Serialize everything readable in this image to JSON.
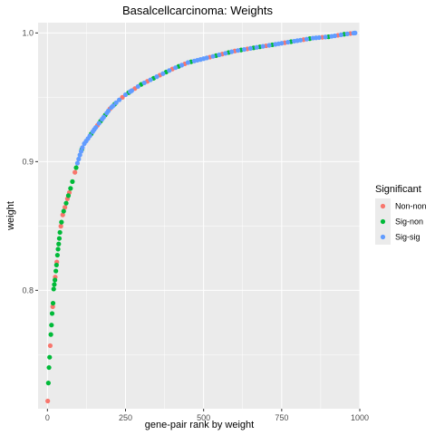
{
  "chart_data": {
    "type": "scatter",
    "title": "Basalcellcarcinoma: Weights",
    "xlabel": "gene-pair rank by weight",
    "ylabel": "weight",
    "xlim": [
      -30,
      1000
    ],
    "ylim": [
      0.708,
      1.008
    ],
    "x_ticks": [
      0,
      250,
      500,
      750,
      1000
    ],
    "x_tick_labels": [
      "0",
      "250",
      "500",
      "750",
      "1000"
    ],
    "y_ticks": [
      0.8,
      0.9,
      1.0
    ],
    "y_tick_labels": [
      "0.8",
      "0.9",
      "1.0"
    ],
    "grid": true,
    "background": "#EBEBEB",
    "legend": {
      "title": "Significant",
      "position": "right",
      "entries": [
        {
          "label": "Non-non",
          "color": "#F8766D"
        },
        {
          "label": "Sig-non",
          "color": "#00BA38"
        },
        {
          "label": "Sig-sig",
          "color": "#619CFF"
        }
      ]
    },
    "curve_points": [
      [
        1,
        0.714
      ],
      [
        3,
        0.728
      ],
      [
        5,
        0.74
      ],
      [
        8,
        0.752
      ],
      [
        10,
        0.762
      ],
      [
        13,
        0.773
      ],
      [
        15,
        0.782
      ],
      [
        18,
        0.79
      ],
      [
        20,
        0.801
      ],
      [
        24,
        0.808
      ],
      [
        27,
        0.815
      ],
      [
        30,
        0.822
      ],
      [
        33,
        0.83
      ],
      [
        37,
        0.838
      ],
      [
        40,
        0.845
      ],
      [
        45,
        0.853
      ],
      [
        50,
        0.86
      ],
      [
        58,
        0.866
      ],
      [
        65,
        0.872
      ],
      [
        75,
        0.88
      ],
      [
        85,
        0.889
      ],
      [
        95,
        0.898
      ],
      [
        105,
        0.906
      ],
      [
        115,
        0.913
      ],
      [
        130,
        0.918
      ],
      [
        150,
        0.925
      ],
      [
        175,
        0.933
      ],
      [
        200,
        0.941
      ],
      [
        225,
        0.947
      ],
      [
        250,
        0.952
      ],
      [
        300,
        0.96
      ],
      [
        350,
        0.966
      ],
      [
        400,
        0.972
      ],
      [
        450,
        0.977
      ],
      [
        500,
        0.98
      ],
      [
        550,
        0.983
      ],
      [
        600,
        0.986
      ],
      [
        650,
        0.988
      ],
      [
        700,
        0.99
      ],
      [
        750,
        0.992
      ],
      [
        800,
        0.994
      ],
      [
        850,
        0.996
      ],
      [
        900,
        0.997
      ],
      [
        950,
        0.999
      ],
      [
        985,
        1.0
      ]
    ],
    "series": [
      {
        "name": "Non-non",
        "color": "#F8766D",
        "ranks": [
          1,
          9,
          17,
          25,
          30,
          43,
          49,
          56,
          64,
          70,
          88,
          160,
          200,
          240,
          280,
          320,
          360,
          400,
          440,
          520,
          560,
          600,
          640,
          700,
          760,
          820,
          880,
          930,
          970
        ]
      },
      {
        "name": "Sig-non",
        "color": "#00BA38",
        "ranks": [
          3,
          5,
          7,
          11,
          13,
          15,
          18,
          20,
          22,
          24,
          27,
          29,
          32,
          34,
          36,
          38,
          40,
          45,
          52,
          60,
          67,
          74,
          80,
          92,
          110,
          140,
          170,
          185,
          215,
          260,
          300,
          340,
          380,
          420,
          460,
          540,
          580,
          620,
          660,
          680,
          720,
          780,
          840,
          900,
          950
        ]
      },
      {
        "name": "Sig-sig",
        "color": "#619CFF",
        "ranks": [
          96,
          100,
          104,
          108,
          112,
          118,
          124,
          130,
          136,
          145,
          150,
          155,
          165,
          175,
          180,
          190,
          195,
          205,
          210,
          220,
          230,
          250,
          265,
          270,
          290,
          310,
          330,
          350,
          370,
          390,
          410,
          430,
          450,
          470,
          480,
          490,
          500,
          510,
          530,
          550,
          570,
          590,
          610,
          630,
          650,
          670,
          690,
          710,
          730,
          740,
          750,
          770,
          790,
          800,
          810,
          830,
          850,
          860,
          870,
          890,
          910,
          920,
          940,
          960,
          980,
          985
        ]
      }
    ]
  }
}
